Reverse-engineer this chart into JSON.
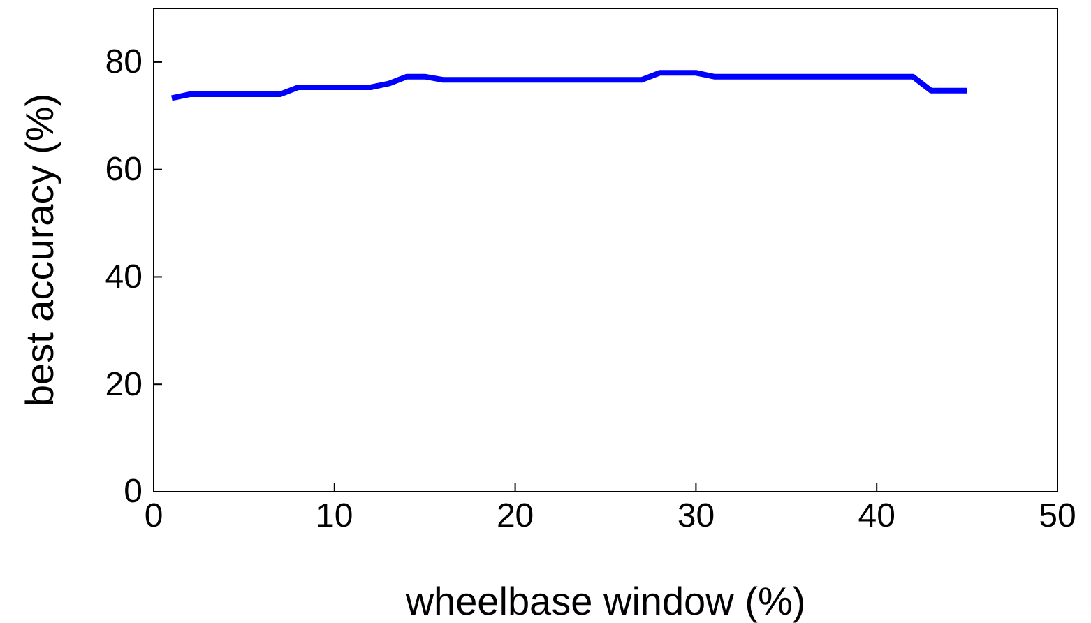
{
  "chart_data": {
    "type": "line",
    "xlabel": "wheelbase window (%)",
    "ylabel": "best accuracy (%)",
    "xlim": [
      0,
      50
    ],
    "ylim": [
      0,
      90
    ],
    "xticks": [
      0,
      10,
      20,
      30,
      40,
      50
    ],
    "yticks": [
      0,
      20,
      40,
      60,
      80
    ],
    "grid": false,
    "marker": "none",
    "line_style": "solid",
    "x": [
      1,
      2,
      3,
      4,
      5,
      6,
      7,
      8,
      9,
      10,
      11,
      12,
      13,
      14,
      15,
      16,
      17,
      18,
      19,
      20,
      21,
      22,
      23,
      24,
      25,
      26,
      27,
      28,
      29,
      30,
      31,
      32,
      33,
      34,
      35,
      36,
      37,
      38,
      39,
      40,
      41,
      42,
      43,
      44,
      45
    ],
    "series": [
      {
        "color": "#0000ff",
        "values": [
          73.3,
          74,
          74,
          74,
          74,
          74,
          74,
          75.3,
          75.3,
          75.3,
          75.3,
          75.3,
          76,
          77.3,
          77.3,
          76.7,
          76.7,
          76.7,
          76.7,
          76.7,
          76.7,
          76.7,
          76.7,
          76.7,
          76.7,
          76.7,
          76.7,
          78,
          78,
          78,
          77.3,
          77.3,
          77.3,
          77.3,
          77.3,
          77.3,
          77.3,
          77.3,
          77.3,
          77.3,
          77.3,
          77.3,
          74.7,
          74.7,
          74.7
        ]
      }
    ]
  }
}
